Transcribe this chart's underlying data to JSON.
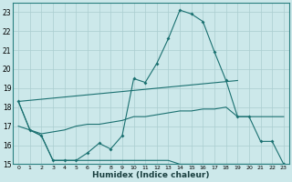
{
  "xlabel": "Humidex (Indice chaleur)",
  "x": [
    0,
    1,
    2,
    3,
    4,
    5,
    6,
    7,
    8,
    9,
    10,
    11,
    12,
    13,
    14,
    15,
    16,
    17,
    18,
    19,
    20,
    21,
    22,
    23
  ],
  "line_volatile": [
    18.3,
    16.8,
    16.5,
    15.2,
    15.2,
    15.2,
    15.6,
    16.1,
    15.8,
    16.5,
    19.5,
    19.3,
    20.3,
    21.6,
    23.1,
    22.9,
    22.5,
    20.9,
    19.4,
    17.5,
    17.5,
    16.2,
    16.2,
    15.0
  ],
  "line_flat": [
    18.3,
    16.8,
    16.5,
    15.2,
    15.2,
    15.2,
    15.2,
    15.2,
    15.2,
    15.2,
    15.2,
    15.2,
    15.2,
    15.2,
    15.0,
    15.0,
    15.0,
    15.0,
    15.0,
    15.0,
    15.0,
    15.0,
    15.0,
    15.0
  ],
  "line_gradual": [
    17.0,
    16.8,
    16.6,
    16.7,
    16.8,
    17.0,
    17.1,
    17.1,
    17.2,
    17.3,
    17.5,
    17.5,
    17.6,
    17.7,
    17.8,
    17.8,
    17.9,
    17.9,
    18.0,
    17.5,
    17.5,
    17.5,
    17.5,
    17.5
  ],
  "line_trend_x": [
    0,
    19
  ],
  "line_trend_y": [
    18.3,
    19.4
  ],
  "background_color": "#cce8ea",
  "grid_color": "#aacdd0",
  "line_color": "#1a7070",
  "ylim": [
    15,
    23.5
  ],
  "xlim": [
    -0.5,
    23.5
  ],
  "yticks": [
    15,
    16,
    17,
    18,
    19,
    20,
    21,
    22,
    23
  ],
  "xticks": [
    0,
    1,
    2,
    3,
    4,
    5,
    6,
    7,
    8,
    9,
    10,
    11,
    12,
    13,
    14,
    15,
    16,
    17,
    18,
    19,
    20,
    21,
    22,
    23
  ]
}
